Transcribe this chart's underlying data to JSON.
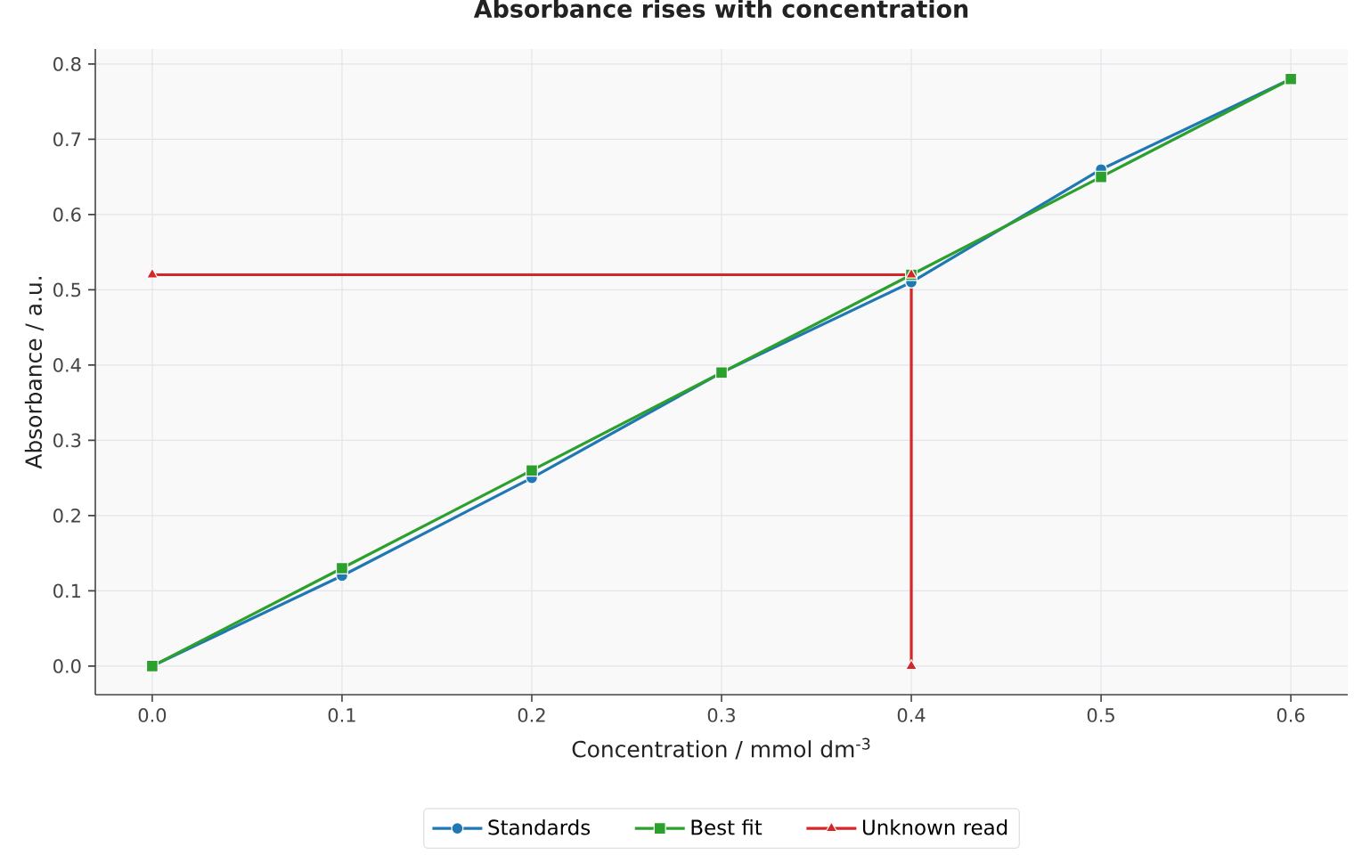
{
  "chart_data": {
    "type": "line",
    "title": "Absorbance rises with concentration",
    "xlabel": "Concentration / mmol dm$^{-3}$",
    "ylabel": "Absorbance / a.u.",
    "series": [
      {
        "name": "Standards",
        "color": "#1f77b4",
        "marker": "circle",
        "x": [
          0.0,
          0.1,
          0.2,
          0.3,
          0.4,
          0.5,
          0.6
        ],
        "values": [
          0.0,
          0.12,
          0.25,
          0.39,
          0.51,
          0.66,
          0.78
        ]
      },
      {
        "name": "Best fit",
        "color": "#2ca02c",
        "marker": "square",
        "x": [
          0.0,
          0.1,
          0.2,
          0.3,
          0.4,
          0.5,
          0.6
        ],
        "values": [
          0.0,
          0.13,
          0.26,
          0.39,
          0.52,
          0.65,
          0.78
        ]
      },
      {
        "name": "Unknown read",
        "color": "#d62728",
        "marker": "triangle",
        "x": [
          0.0,
          0.4,
          0.4
        ],
        "values": [
          0.52,
          0.52,
          0.0
        ]
      }
    ],
    "xlim": [
      -0.03,
      0.63
    ],
    "ylim": [
      -0.038,
      0.82
    ],
    "xticks": [
      {
        "value": 0,
        "label": "0.0"
      },
      0.1,
      0.2,
      0.3,
      0.4,
      0.5,
      0.6
    ],
    "yticks": [
      {
        "value": 0,
        "label": "0.0"
      },
      0.1,
      0.2,
      0.3,
      0.4,
      0.5,
      0.6,
      0.7,
      0.8
    ],
    "grid": true,
    "legend": "bottom"
  }
}
